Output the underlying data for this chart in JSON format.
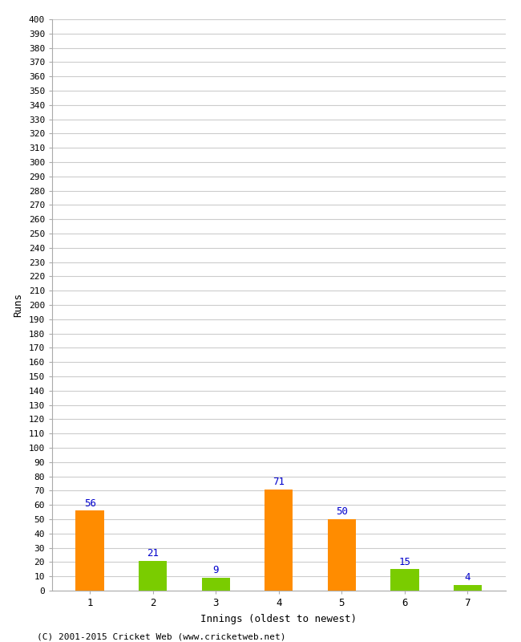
{
  "title": "",
  "xlabel": "Innings (oldest to newest)",
  "ylabel": "Runs",
  "categories": [
    "1",
    "2",
    "3",
    "4",
    "5",
    "6",
    "7"
  ],
  "values": [
    56,
    21,
    9,
    71,
    50,
    15,
    4
  ],
  "bar_colors": [
    "#ff8c00",
    "#7acc00",
    "#7acc00",
    "#ff8c00",
    "#ff8c00",
    "#7acc00",
    "#7acc00"
  ],
  "ylim": [
    0,
    400
  ],
  "background_color": "#ffffff",
  "grid_color": "#cccccc",
  "label_color": "#0000cc",
  "footer": "(C) 2001-2015 Cricket Web (www.cricketweb.net)"
}
